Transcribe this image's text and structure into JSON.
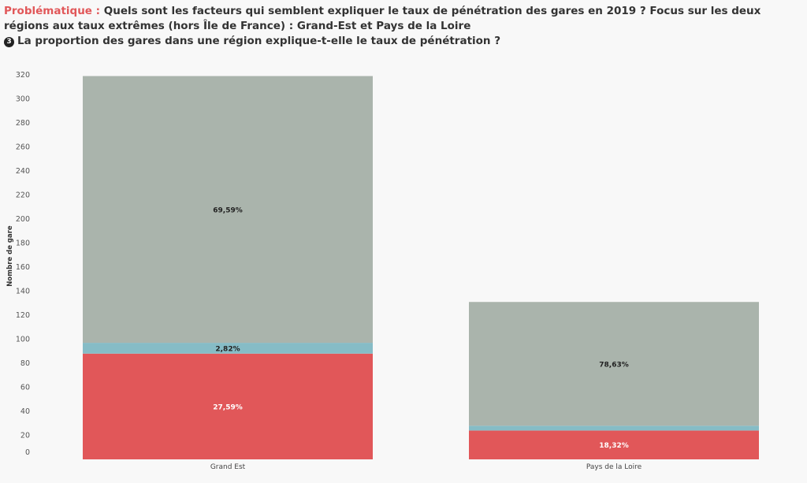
{
  "header": {
    "prefix": "Problématique :",
    "question": " Quels sont les facteurs qui semblent expliquer le taux de pénétration des gares en 2019 ?  Focus sur les deux régions aux taux extrêmes (hors Île de France) : Grand-Est et Pays de la Loire",
    "step_number": "3",
    "subquestion": "La proportion des gares dans une région explique-t-elle le taux de pénétration ?"
  },
  "colors": {
    "gray_segment": "#aab4ac",
    "teal_segment": "#86bcc6",
    "red_segment": "#e15759",
    "prefix_text": "#e15759"
  },
  "chart_data": {
    "type": "bar",
    "stacked": true,
    "ylabel": "Nombre de gare",
    "xlabel": "",
    "ylim": [
      0,
      320
    ],
    "yticks": [
      0,
      20,
      40,
      60,
      80,
      100,
      120,
      140,
      160,
      180,
      200,
      220,
      240,
      260,
      280,
      300,
      320
    ],
    "grid": false,
    "categories": [
      "Grand Est",
      "Pays de la Loire"
    ],
    "series": [
      {
        "color": "#e15759",
        "values": [
          88,
          24
        ],
        "labels": [
          "27,59%",
          "18,32%"
        ],
        "label_color": "#ffffff"
      },
      {
        "color": "#86bcc6",
        "values": [
          9,
          4
        ],
        "labels": [
          "2,82%",
          ""
        ],
        "label_color": "#222222"
      },
      {
        "color": "#aab4ac",
        "values": [
          222,
          103
        ],
        "labels": [
          "69,59%",
          "78,63%"
        ],
        "label_color": "#222222"
      }
    ]
  }
}
